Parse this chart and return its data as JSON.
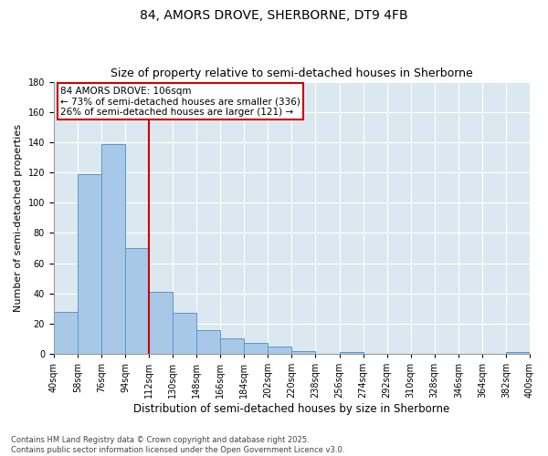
{
  "title1": "84, AMORS DROVE, SHERBORNE, DT9 4FB",
  "title2": "Size of property relative to semi-detached houses in Sherborne",
  "xlabel": "Distribution of semi-detached houses by size in Sherborne",
  "ylabel": "Number of semi-detached properties",
  "bins_left": [
    40,
    58,
    76,
    94,
    112,
    130,
    148,
    166,
    184,
    202,
    220,
    238,
    256,
    274,
    292,
    310,
    328,
    346,
    364,
    382
  ],
  "bin_width": 18,
  "bins_all": [
    40,
    58,
    76,
    94,
    112,
    130,
    148,
    166,
    184,
    202,
    220,
    238,
    256,
    274,
    292,
    310,
    328,
    346,
    364,
    382,
    400
  ],
  "values": [
    28,
    119,
    139,
    70,
    41,
    27,
    16,
    10,
    7,
    5,
    2,
    0,
    1,
    0,
    0,
    0,
    0,
    0,
    0,
    1
  ],
  "bar_color": "#a8c8e8",
  "bar_edgecolor": "#5599cc",
  "vline_x": 112,
  "vline_color": "#cc0000",
  "annotation_text": "84 AMORS DROVE: 106sqm\n← 73% of semi-detached houses are smaller (336)\n26% of semi-detached houses are larger (121) →",
  "annotation_box_color": "#ffffff",
  "annotation_box_edgecolor": "#cc0000",
  "ylim": [
    0,
    180
  ],
  "yticks": [
    0,
    20,
    40,
    60,
    80,
    100,
    120,
    140,
    160,
    180
  ],
  "bg_color": "#dce8f0",
  "footer": "Contains HM Land Registry data © Crown copyright and database right 2025.\nContains public sector information licensed under the Open Government Licence v3.0.",
  "title1_fontsize": 10,
  "title2_fontsize": 9,
  "xlabel_fontsize": 8.5,
  "ylabel_fontsize": 8,
  "tick_fontsize": 7,
  "annotation_fontsize": 7.5,
  "footer_fontsize": 6
}
